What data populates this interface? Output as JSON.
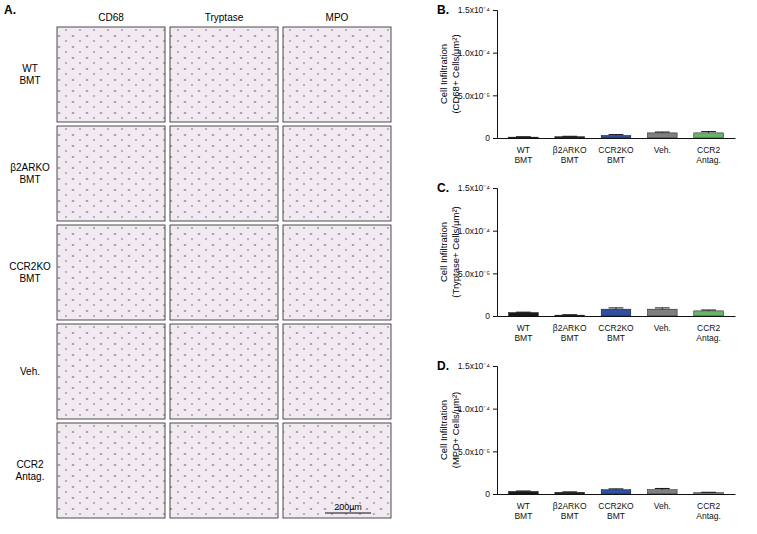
{
  "image_panel": {
    "label": "A.",
    "columns": [
      "CD68",
      "Tryptase",
      "MPO"
    ],
    "rows": [
      "WT BMT",
      "β2ARKO BMT",
      "CCR2KO BMT",
      "Veh.",
      "CCR2 Antag."
    ],
    "scale_bar": "200µm"
  },
  "chart_data": [
    {
      "type": "bar",
      "panel": "B.",
      "y_label": [
        "Cell Infiltration",
        "(CD68+ Cells/µm²)"
      ],
      "categories": [
        "WT BMT",
        "β2ARKO BMT",
        "CCR2KO BMT",
        "Veh.",
        "CCR2 Antag."
      ],
      "values": [
        1e-06,
        1.5e-06,
        3e-06,
        6e-06,
        6e-06
      ],
      "errors": [
        5e-07,
        5e-07,
        1e-06,
        1e-06,
        1.5e-06
      ],
      "colors": [
        "#1a1a1a",
        "#2b2b2b",
        "#2f4f9f",
        "#7f7f7f",
        "#67b567"
      ],
      "ylim": [
        0,
        0.00015
      ],
      "yticks": [
        0,
        {
          "value": 5e-05,
          "label": "5.0x10⁻⁵"
        },
        {
          "value": 0.0001,
          "label": "1.0x10⁻⁴"
        },
        {
          "value": 0.00015,
          "label": "1.5x10⁻⁴"
        }
      ]
    },
    {
      "type": "bar",
      "panel": "C.",
      "y_label": [
        "Cell Infiltration",
        "(Tryptase+ Cells/µm²)"
      ],
      "categories": [
        "WT BMT",
        "β2ARKO BMT",
        "CCR2KO BMT",
        "Veh.",
        "CCR2 Antag."
      ],
      "values": [
        4e-06,
        1e-06,
        8e-06,
        8e-06,
        6e-06
      ],
      "errors": [
        5e-07,
        5e-07,
        1.5e-06,
        1.5e-06,
        1e-06
      ],
      "colors": [
        "#1a1a1a",
        "#2b2b2b",
        "#2f4f9f",
        "#7f7f7f",
        "#67b567"
      ],
      "ylim": [
        0,
        0.00015
      ],
      "yticks": [
        0,
        {
          "value": 5e-05,
          "label": "5.0x10⁻⁵"
        },
        {
          "value": 0.0001,
          "label": "1.0x10⁻⁴"
        },
        {
          "value": 0.00015,
          "label": "1.5x10⁻⁴"
        }
      ]
    },
    {
      "type": "bar",
      "panel": "D.",
      "y_label": [
        "Cell Infiltration",
        "(MPO+ Cells/µm²)"
      ],
      "categories": [
        "WT BMT",
        "β2ARKO BMT",
        "CCR2KO BMT",
        "Veh.",
        "CCR2 Antag."
      ],
      "values": [
        3e-06,
        2e-06,
        5e-06,
        5e-06,
        1.5e-06
      ],
      "errors": [
        5e-07,
        5e-07,
        1e-06,
        1.5e-06,
        5e-07
      ],
      "colors": [
        "#1a1a1a",
        "#2b2b2b",
        "#2f4f9f",
        "#7f7f7f",
        "#67b567"
      ],
      "ylim": [
        0,
        0.00015
      ],
      "yticks": [
        0,
        {
          "value": 5e-05,
          "label": "5.0x10⁻⁵"
        },
        {
          "value": 0.0001,
          "label": "1.0x10⁻⁴"
        },
        {
          "value": 0.00015,
          "label": "1.5x10⁻⁴"
        }
      ]
    }
  ]
}
